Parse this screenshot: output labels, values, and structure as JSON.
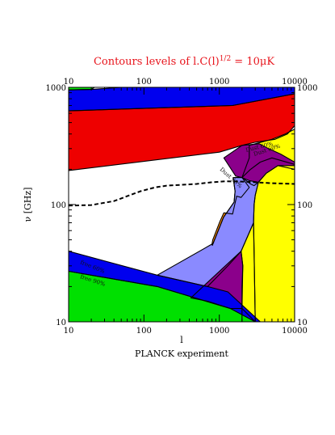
{
  "chart_data": {
    "type": "area",
    "title": "Contours levels of l.C(l)1/2 = 10μK",
    "xlabel": "l",
    "xlabel_bottom": "PLANCK experiment",
    "ylabel": "ν [GHz]",
    "xscale": "log",
    "yscale": "log",
    "xlim": [
      10,
      10000
    ],
    "ylim": [
      10,
      1000
    ],
    "xticks": [
      "10",
      "100",
      "1000",
      "10000"
    ],
    "yticks": [
      "10",
      "100",
      "1000"
    ],
    "regions": [
      {
        "color": "#00e000",
        "polygon": [
          [
            10,
            1000
          ],
          [
            22,
            1000
          ],
          [
            20,
            960
          ],
          [
            10,
            950
          ]
        ]
      },
      {
        "color": "#0000ee",
        "polygon": [
          [
            10,
            950
          ],
          [
            20,
            960
          ],
          [
            50,
            1000
          ],
          [
            10000,
            1000
          ],
          [
            10000,
            880
          ],
          [
            1500,
            700
          ],
          [
            10,
            630
          ]
        ]
      },
      {
        "color": "#ee0000",
        "polygon": [
          [
            10,
            630
          ],
          [
            1500,
            700
          ],
          [
            10000,
            880
          ],
          [
            10000,
            470
          ],
          [
            8000,
            400
          ],
          [
            5500,
            360
          ],
          [
            3000,
            340
          ],
          [
            2000,
            320
          ],
          [
            1000,
            280
          ],
          [
            10,
            195
          ]
        ]
      },
      {
        "color": "#ffff00",
        "polygon": [
          [
            2500,
            320
          ],
          [
            5000,
            360
          ],
          [
            7500,
            400
          ],
          [
            10000,
            440
          ],
          [
            10000,
            220
          ],
          [
            5000,
            250
          ],
          [
            3500,
            230
          ],
          [
            2600,
            200
          ],
          [
            2000,
            170
          ],
          [
            2500,
            250
          ]
        ]
      },
      {
        "color": "#8b008b",
        "polygon": [
          [
            1150,
            250
          ],
          [
            2000,
            320
          ],
          [
            3400,
            330
          ],
          [
            4500,
            300
          ],
          [
            6500,
            270
          ],
          [
            10000,
            230
          ],
          [
            10000,
            200
          ],
          [
            6000,
            215
          ],
          [
            4200,
            185
          ],
          [
            3300,
            155
          ],
          [
            2900,
            145
          ],
          [
            2600,
            150
          ],
          [
            2000,
            170
          ],
          [
            1650,
            175
          ]
        ]
      },
      {
        "color": "#ff8c00",
        "polygon": [
          [
            1530,
            170
          ],
          [
            2000,
            170
          ],
          [
            2500,
            140
          ],
          [
            1950,
            115
          ],
          [
            1700,
            118
          ],
          [
            1500,
            83
          ],
          [
            1150,
            85
          ],
          [
            1020,
            72
          ],
          [
            820,
            50
          ],
          [
            800,
            46
          ],
          [
            810,
            45
          ],
          [
            1140,
            78
          ],
          [
            1570,
            105
          ],
          [
            1620,
            130
          ]
        ]
      },
      {
        "color": "#ffff00",
        "polygon": [
          [
            3300,
            155
          ],
          [
            4200,
            185
          ],
          [
            6000,
            215
          ],
          [
            10000,
            215
          ],
          [
            10000,
            10
          ],
          [
            3000,
            10
          ],
          [
            2950,
            20
          ],
          [
            2900,
            40
          ],
          [
            2850,
            70
          ],
          [
            2900,
            100
          ],
          [
            3000,
            120
          ]
        ]
      },
      {
        "color": "#8a8aff",
        "polygon": [
          [
            1530,
            170
          ],
          [
            2000,
            170
          ],
          [
            2500,
            160
          ],
          [
            3300,
            155
          ],
          [
            3000,
            120
          ],
          [
            2900,
            100
          ],
          [
            2850,
            70
          ],
          [
            1950,
            40
          ],
          [
            1300,
            30
          ],
          [
            700,
            20
          ],
          [
            150,
            25
          ],
          [
            800,
            46
          ],
          [
            810,
            45
          ],
          [
            1140,
            78
          ],
          [
            1570,
            105
          ],
          [
            1620,
            130
          ]
        ]
      },
      {
        "color": "#8b008b",
        "polygon": [
          [
            420,
            16
          ],
          [
            1950,
            40
          ],
          [
            2050,
            30
          ],
          [
            2000,
            20
          ],
          [
            2000,
            13
          ],
          [
            1400,
            13
          ],
          [
            700,
            15
          ]
        ]
      },
      {
        "color": "#ffff00",
        "polygon": [
          [
            2000,
            10
          ],
          [
            2000,
            13
          ],
          [
            2050,
            30
          ],
          [
            1950,
            40
          ],
          [
            2850,
            70
          ],
          [
            2950,
            20
          ],
          [
            3000,
            10
          ]
        ]
      },
      {
        "color": "#00e000",
        "polygon": [
          [
            10,
            27
          ],
          [
            150,
            20
          ],
          [
            1400,
            13
          ],
          [
            2000,
            13
          ],
          [
            3000,
            10
          ],
          [
            10,
            10
          ]
        ]
      },
      {
        "color": "#0000ee",
        "polygon": [
          [
            10,
            40
          ],
          [
            150,
            25
          ],
          [
            700,
            20
          ],
          [
            1300,
            18
          ],
          [
            3500,
            10
          ],
          [
            3000,
            10
          ],
          [
            1400,
            13
          ],
          [
            150,
            20
          ],
          [
            10,
            27
          ]
        ]
      }
    ],
    "dashed_curve": [
      [
        10,
        98
      ],
      [
        20,
        99
      ],
      [
        40,
        107
      ],
      [
        60,
        118
      ],
      [
        90,
        130
      ],
      [
        140,
        140
      ],
      [
        200,
        145
      ],
      [
        300,
        147
      ],
      [
        500,
        150
      ],
      [
        800,
        155
      ],
      [
        1200,
        158
      ],
      [
        2000,
        157
      ],
      [
        3000,
        155
      ],
      [
        5000,
        152
      ],
      [
        10000,
        150
      ]
    ],
    "contour_labels": [
      "Dust 60%",
      "Dust 90%",
      "Dust 60%",
      "free 60%",
      "free 90%"
    ]
  }
}
